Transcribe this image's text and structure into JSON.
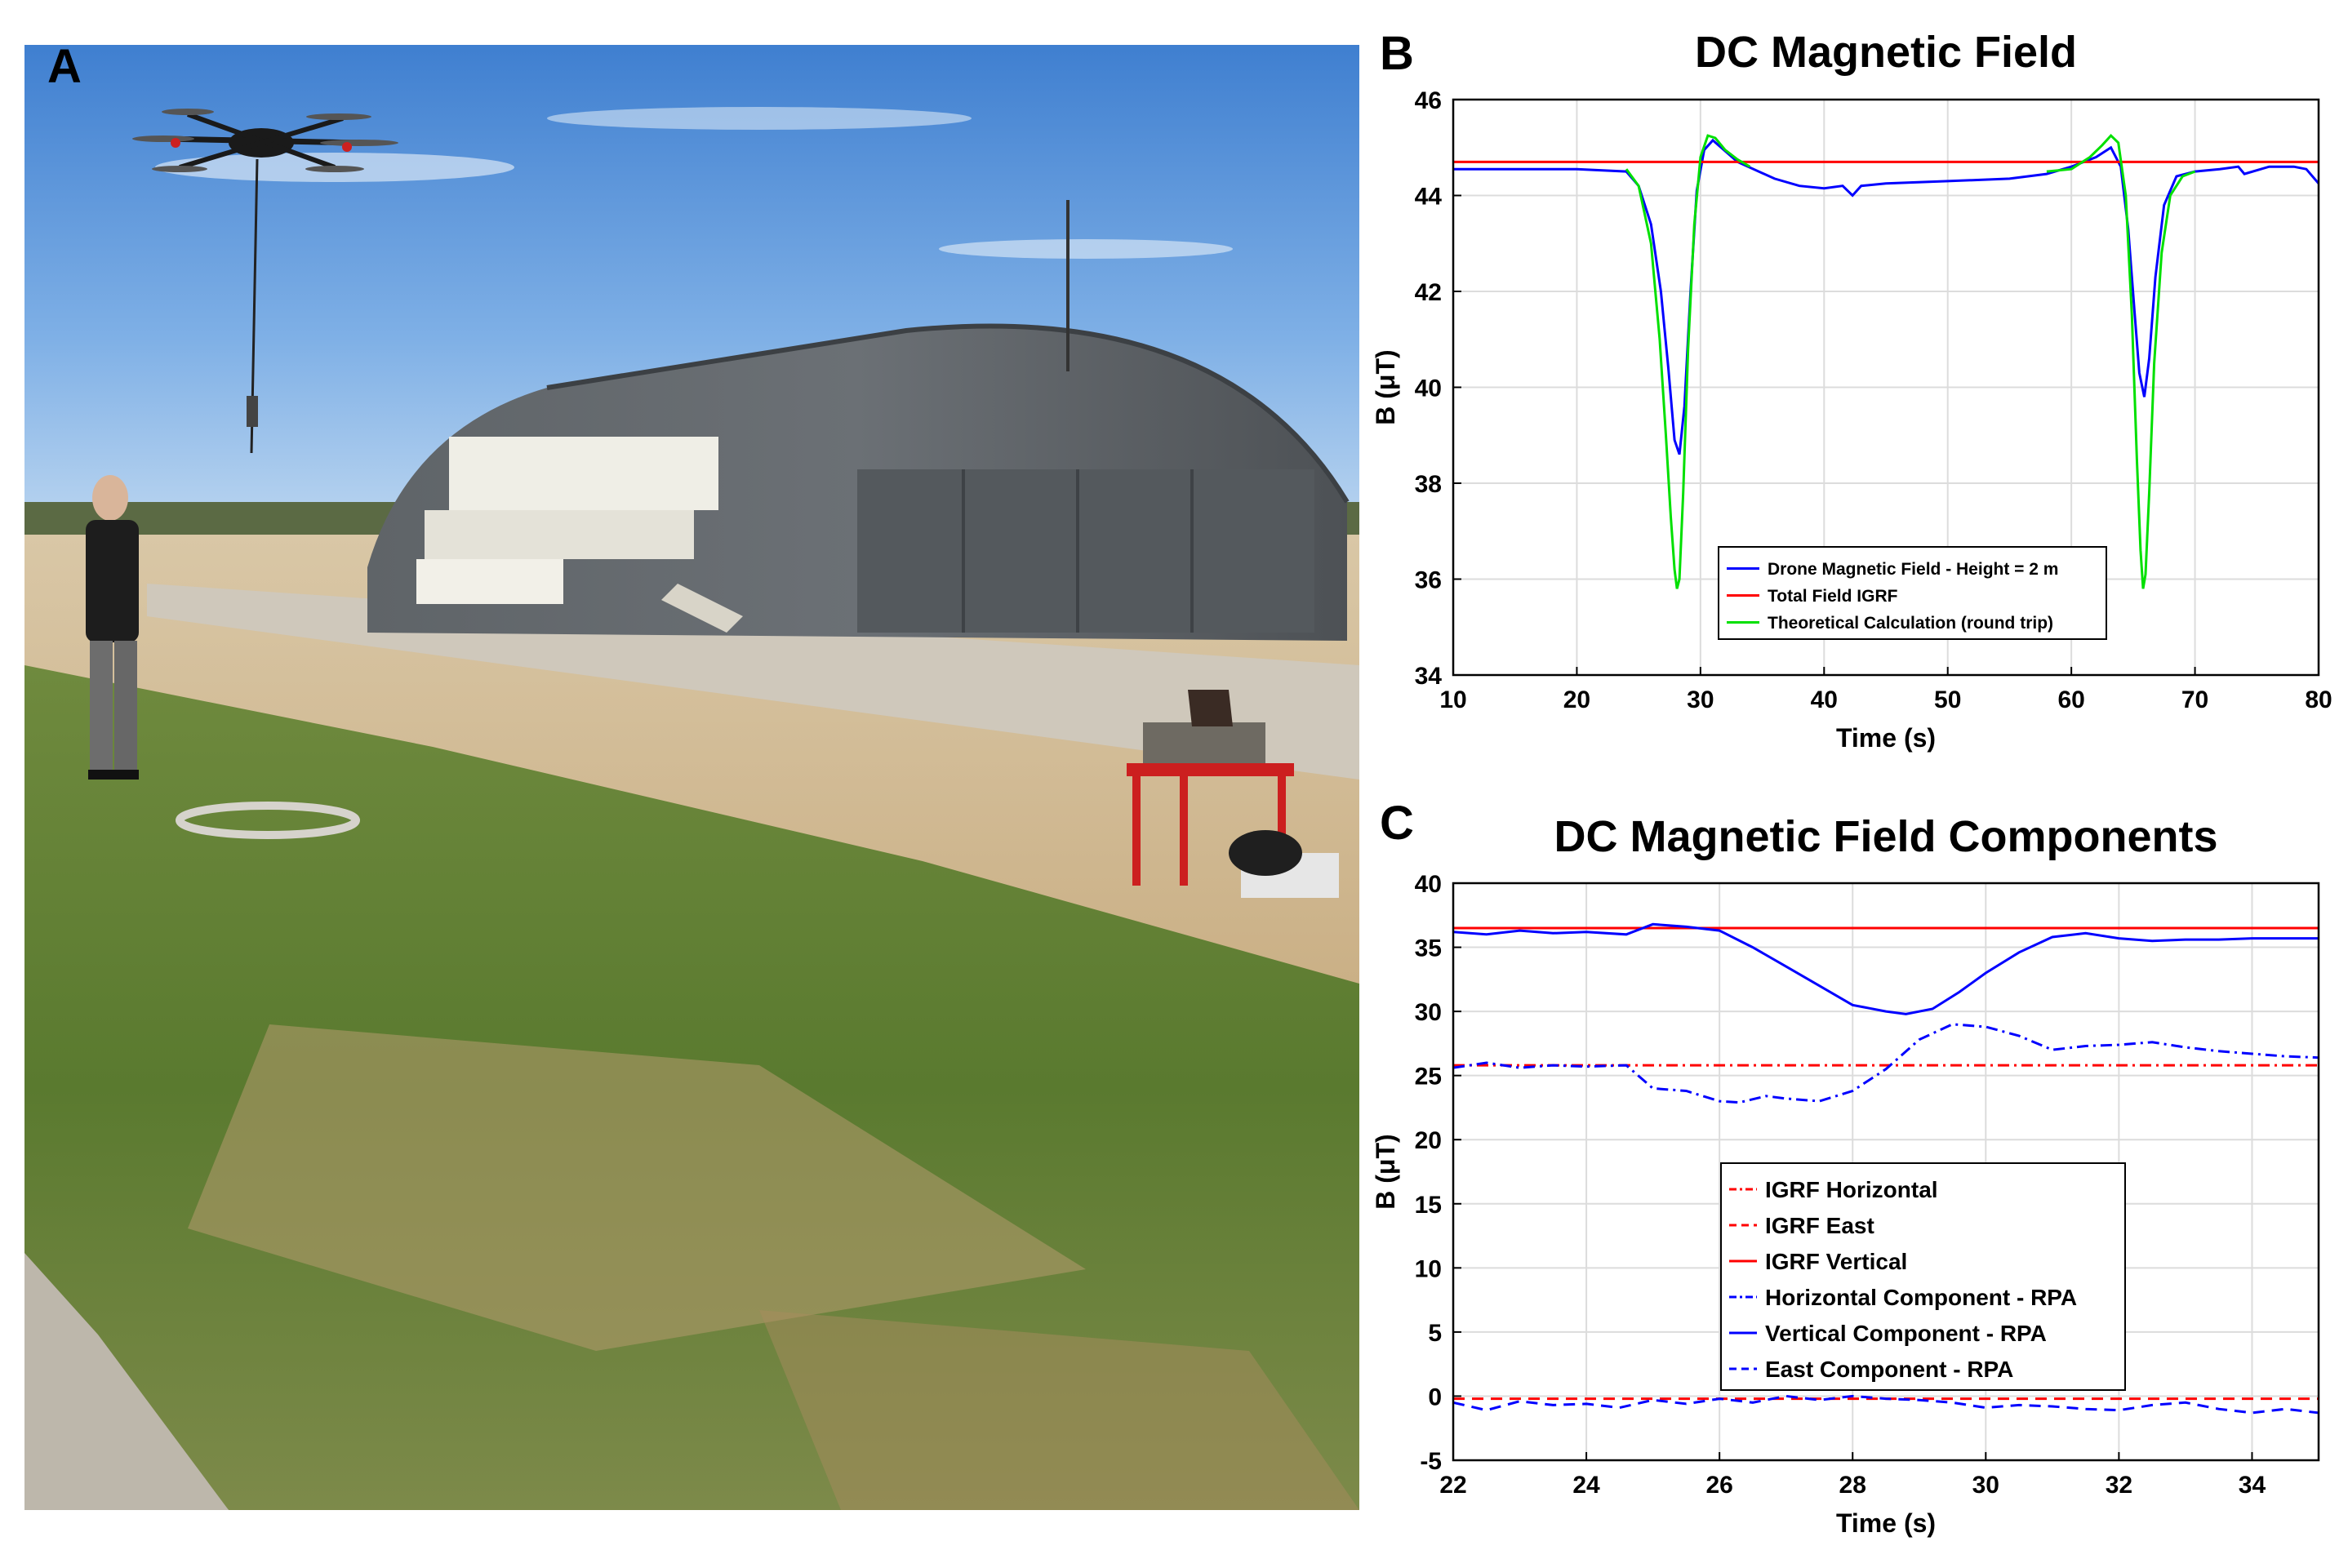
{
  "panels": {
    "photo": {
      "label": "A",
      "subject": "Drone carrying a suspended magnetometer over a grassy field in front of an aircraft hangar; an operator stands at left, a loop coil lies on the ground and a laptop sits on a red table."
    },
    "b": {
      "label": "B"
    },
    "c": {
      "label": "C"
    }
  },
  "chart_data": [
    {
      "type": "line",
      "title": "DC Magnetic Field",
      "xlabel": "Time (s)",
      "ylabel": "B (μT)",
      "xlim": [
        10,
        80
      ],
      "ylim": [
        34,
        46
      ],
      "xticks": [
        10,
        20,
        30,
        40,
        50,
        60,
        70,
        80
      ],
      "yticks": [
        34,
        36,
        38,
        40,
        42,
        44,
        46
      ],
      "grid": true,
      "legend_position": "lower-center",
      "series": [
        {
          "name": "Drone Magnetic Field -  Height = 2 m",
          "color": "#0000ff",
          "style": "solid",
          "x": [
            10,
            20,
            24,
            25,
            26,
            26.8,
            27.4,
            27.9,
            28.3,
            28.7,
            29.2,
            29.7,
            30.3,
            31,
            33,
            36,
            38,
            40,
            41.5,
            42.3,
            43,
            45,
            50,
            55,
            58,
            60,
            62,
            63.2,
            64,
            64.6,
            65.1,
            65.5,
            65.9,
            66.3,
            66.8,
            67.5,
            68.5,
            70,
            72,
            73.5,
            74,
            76,
            78,
            79,
            80
          ],
          "y": [
            44.55,
            44.55,
            44.5,
            44.2,
            43.4,
            42.0,
            40.4,
            38.9,
            38.6,
            39.6,
            42.0,
            44.1,
            44.95,
            45.15,
            44.7,
            44.35,
            44.2,
            44.15,
            44.2,
            44.0,
            44.2,
            44.25,
            44.3,
            44.35,
            44.45,
            44.6,
            44.8,
            45.0,
            44.6,
            43.3,
            41.6,
            40.3,
            39.8,
            40.6,
            42.3,
            43.8,
            44.4,
            44.5,
            44.55,
            44.6,
            44.45,
            44.6,
            44.6,
            44.55,
            44.25
          ]
        },
        {
          "name": "Total Field IGRF",
          "color": "#ff0000",
          "style": "solid",
          "x": [
            10,
            80
          ],
          "y": [
            44.7,
            44.7
          ]
        },
        {
          "name": "Theoretical Calculation (round trip)",
          "color": "#00e000",
          "style": "solid",
          "x": [
            24,
            25,
            26,
            26.7,
            27.2,
            27.6,
            27.9,
            28.1,
            28.3,
            28.6,
            29,
            29.5,
            30,
            30.6,
            31.2,
            32,
            33,
            34
          ],
          "y": [
            44.55,
            44.2,
            43.0,
            41.0,
            39.0,
            37.3,
            36.2,
            35.8,
            36.0,
            37.8,
            40.8,
            43.4,
            44.8,
            45.25,
            45.2,
            44.95,
            44.75,
            44.6
          ],
          "x2": [
            58,
            60,
            61.5,
            62.5,
            63.2,
            63.8,
            64.4,
            64.9,
            65.3,
            65.6,
            65.8,
            66.0,
            66.3,
            66.7,
            67.3,
            68,
            69,
            70
          ],
          "y2": [
            44.5,
            44.55,
            44.8,
            45.05,
            45.25,
            45.1,
            44.0,
            41.5,
            38.5,
            36.6,
            35.8,
            36.1,
            37.8,
            40.5,
            42.8,
            44.0,
            44.4,
            44.5
          ]
        }
      ]
    },
    {
      "type": "line",
      "title": "DC Magnetic Field Components",
      "xlabel": "Time (s)",
      "ylabel": "B (μT)",
      "xlim": [
        22,
        35
      ],
      "ylim": [
        -5,
        40
      ],
      "xticks": [
        22,
        24,
        26,
        28,
        30,
        32,
        34
      ],
      "yticks": [
        -5,
        0,
        5,
        10,
        15,
        20,
        25,
        30,
        35,
        40
      ],
      "grid": true,
      "legend_position": "center",
      "series": [
        {
          "name": "IGRF Horizontal",
          "color": "#ff0000",
          "style": "dashdot",
          "x": [
            22,
            35
          ],
          "y": [
            25.8,
            25.8
          ]
        },
        {
          "name": "IGRF East",
          "color": "#ff0000",
          "style": "dashed",
          "x": [
            22,
            35
          ],
          "y": [
            -0.2,
            -0.2
          ]
        },
        {
          "name": "IGRF Vertical",
          "color": "#ff0000",
          "style": "solid",
          "x": [
            22,
            35
          ],
          "y": [
            36.5,
            36.5
          ]
        },
        {
          "name": "Horizontal Component - RPA",
          "color": "#0000ff",
          "style": "dashdot",
          "x": [
            22,
            22.5,
            23,
            23.5,
            24,
            24.6,
            25,
            25.5,
            26,
            26.3,
            26.7,
            27,
            27.5,
            28,
            28.5,
            29,
            29.5,
            30,
            30.5,
            31,
            31.5,
            32,
            32.5,
            33,
            33.5,
            34,
            34.5,
            35
          ],
          "y": [
            25.6,
            26.0,
            25.6,
            25.8,
            25.7,
            25.8,
            24.0,
            23.8,
            23.0,
            22.9,
            23.4,
            23.2,
            23.0,
            23.8,
            25.5,
            27.8,
            29.0,
            28.8,
            28.1,
            27.0,
            27.3,
            27.4,
            27.6,
            27.2,
            26.9,
            26.7,
            26.5,
            26.4
          ]
        },
        {
          "name": "Vertical Component - RPA",
          "color": "#0000ff",
          "style": "solid",
          "x": [
            22,
            22.5,
            23,
            23.5,
            24,
            24.6,
            25,
            25.5,
            26,
            26.5,
            27,
            27.5,
            28,
            28.5,
            28.8,
            29.2,
            29.6,
            30,
            30.5,
            31,
            31.5,
            32,
            32.5,
            33,
            33.5,
            34,
            34.5,
            35
          ],
          "y": [
            36.2,
            36.0,
            36.3,
            36.1,
            36.2,
            36.0,
            36.8,
            36.6,
            36.3,
            35.0,
            33.5,
            32.0,
            30.5,
            30.0,
            29.8,
            30.2,
            31.5,
            33.0,
            34.6,
            35.8,
            36.1,
            35.7,
            35.5,
            35.6,
            35.6,
            35.7,
            35.7,
            35.7
          ]
        },
        {
          "name": "East Component - RPA",
          "color": "#0000ff",
          "style": "dashed",
          "x": [
            22,
            22.5,
            23,
            23.5,
            24,
            24.5,
            25,
            25.5,
            26,
            26.5,
            27,
            27.5,
            28,
            28.5,
            29,
            29.5,
            30,
            30.5,
            31,
            31.5,
            32,
            32.5,
            33,
            33.5,
            34,
            34.5,
            35
          ],
          "y": [
            -0.5,
            -1.1,
            -0.4,
            -0.7,
            -0.6,
            -0.9,
            -0.3,
            -0.6,
            -0.2,
            -0.5,
            0.0,
            -0.3,
            0.0,
            -0.2,
            -0.3,
            -0.5,
            -0.9,
            -0.7,
            -0.8,
            -1.0,
            -1.1,
            -0.7,
            -0.5,
            -1.0,
            -1.3,
            -1.0,
            -1.3
          ]
        }
      ]
    }
  ]
}
